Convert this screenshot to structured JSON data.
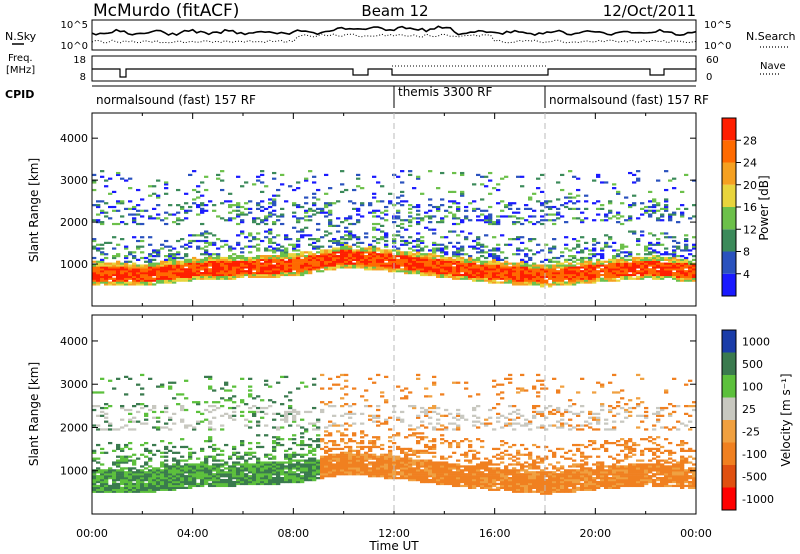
{
  "header": {
    "station": "McMurdo (fitACF)",
    "beam": "Beam 12",
    "date": "12/Oct/2011"
  },
  "top_panels": {
    "nsky_label": "N.Sky",
    "nsearch_label": "N.Search",
    "noise_ticks": [
      "10^5",
      "10^0"
    ],
    "freq_label": "Freq.",
    "freq_unit": "[MHz]",
    "freq_ticks": [
      "18",
      "8"
    ],
    "nave_label": "Nave",
    "nave_ticks": [
      "60",
      "0"
    ],
    "cpid_label": "CPID",
    "cpid_segments": [
      {
        "label": "normalsound (fast) 157 RF",
        "start_hour": 0,
        "end_hour": 12
      },
      {
        "label": "themis 3300 RF",
        "start_hour": 12,
        "end_hour": 18
      },
      {
        "label": "normalsound (fast) 157 RF",
        "start_hour": 18,
        "end_hour": 24
      }
    ]
  },
  "power_colorbar": {
    "label": "Power [dB]",
    "ticks": [
      "4",
      "8",
      "12",
      "16",
      "20",
      "24",
      "28"
    ]
  },
  "velocity_colorbar": {
    "label": "Velocity [m s⁻¹]",
    "ticks": [
      "1000",
      "500",
      "100",
      "25",
      "-25",
      "-100",
      "-500",
      "-1000"
    ]
  },
  "colors": {
    "power": [
      "#1a1aff",
      "#2a52be",
      "#3b8a5a",
      "#6cc04a",
      "#e8d43c",
      "#f5a020",
      "#ff6a00",
      "#ff1e00"
    ],
    "velocity": [
      "#1a3ca8",
      "#3a7a4e",
      "#5cc03c",
      "#c8c8c0",
      "#f0a040",
      "#f08020",
      "#e05010",
      "#ff0000"
    ]
  },
  "chart_data": [
    {
      "type": "heatmap",
      "name_panel": "power",
      "xlabel": "Time UT",
      "ylabel": "Slant Range [km]",
      "xlim": [
        0,
        24
      ],
      "ylim": [
        0,
        4600
      ],
      "x_ticks": [
        "00:00",
        "04:00",
        "08:00",
        "12:00",
        "16:00",
        "20:00",
        "00:00"
      ],
      "y_ticks": [
        1000,
        2000,
        3000,
        4000
      ],
      "band_centers": {
        "x": [
          0,
          2,
          4,
          6,
          8,
          10,
          12,
          14,
          16,
          18,
          20,
          22,
          24
        ],
        "y": [
          750,
          720,
          850,
          900,
          950,
          1150,
          1050,
          900,
          780,
          700,
          800,
          900,
          800
        ]
      },
      "colorbar_range": [
        0,
        32
      ]
    },
    {
      "type": "heatmap",
      "name_panel": "velocity",
      "xlabel": "Time UT",
      "ylabel": "Slant Range [km]",
      "xlim": [
        0,
        24
      ],
      "ylim": [
        0,
        4600
      ],
      "x_ticks": [
        "00:00",
        "04:00",
        "08:00",
        "12:00",
        "16:00",
        "20:00",
        "00:00"
      ],
      "y_ticks": [
        1000,
        2000,
        3000,
        4000
      ],
      "velocity_regions": [
        {
          "from_hour": 0,
          "to_hour": 9,
          "dominant": 100
        },
        {
          "from_hour": 9,
          "to_hour": 24,
          "dominant": -100
        }
      ]
    }
  ]
}
